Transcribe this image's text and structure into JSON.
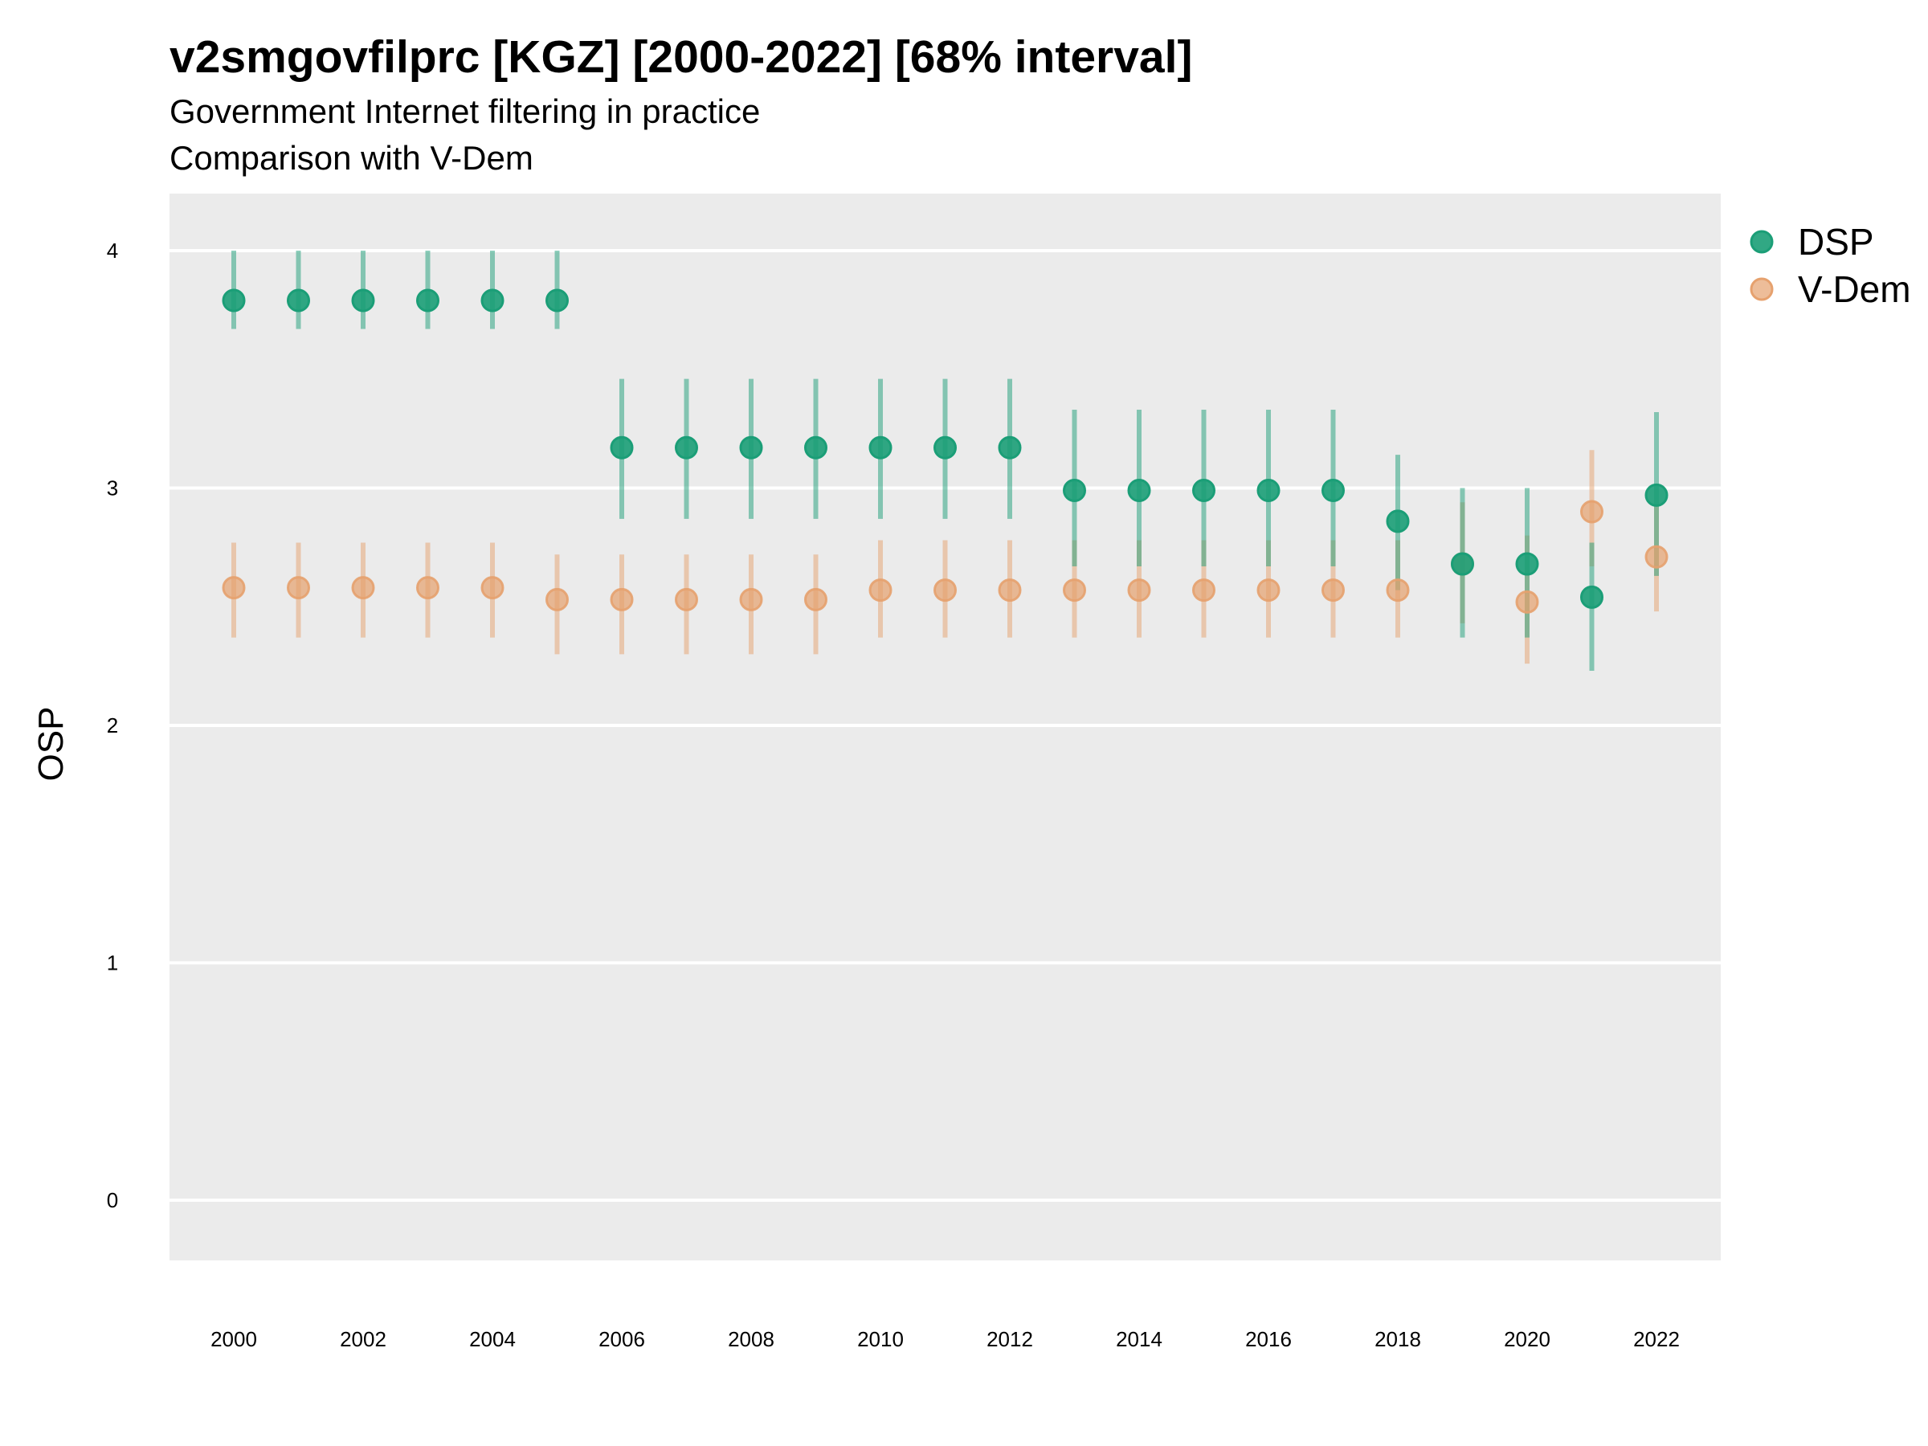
{
  "title": "v2smgovfilprc [KGZ] [2000-2022] [68% interval]",
  "subtitle": "Government Internet filtering in practice",
  "subtitle2": "Comparison with V-Dem",
  "chart_data": {
    "type": "scatter",
    "title": "v2smgovfilprc [KGZ] [2000-2022] [68% interval]",
    "ylabel": "OSP",
    "xlabel": "",
    "x": [
      2000,
      2001,
      2002,
      2003,
      2004,
      2005,
      2006,
      2007,
      2008,
      2009,
      2010,
      2011,
      2012,
      2013,
      2014,
      2015,
      2016,
      2017,
      2018,
      2019,
      2020,
      2021,
      2022
    ],
    "x_ticks": [
      "2000",
      "2002",
      "2004",
      "2006",
      "2008",
      "2010",
      "2012",
      "2014",
      "2016",
      "2018",
      "2020",
      "2022"
    ],
    "y_ticks": [
      "0",
      "1",
      "2",
      "3",
      "4"
    ],
    "ylim": [
      -0.25,
      4.25
    ],
    "xlim": [
      1999,
      2023
    ],
    "grid": true,
    "legend_position": "right",
    "series": [
      {
        "name": "DSP",
        "color": "#1b9e77",
        "values": [
          3.79,
          3.79,
          3.79,
          3.79,
          3.79,
          3.79,
          3.17,
          3.17,
          3.17,
          3.17,
          3.17,
          3.17,
          3.17,
          2.99,
          2.99,
          2.99,
          2.99,
          2.99,
          2.86,
          2.68,
          2.68,
          2.54,
          2.97
        ],
        "lower": [
          3.67,
          3.67,
          3.67,
          3.67,
          3.67,
          3.67,
          2.87,
          2.87,
          2.87,
          2.87,
          2.87,
          2.87,
          2.87,
          2.67,
          2.67,
          2.67,
          2.67,
          2.67,
          2.57,
          2.37,
          2.37,
          2.23,
          2.63
        ],
        "upper": [
          4.0,
          4.0,
          4.0,
          4.0,
          4.0,
          4.0,
          3.46,
          3.46,
          3.46,
          3.46,
          3.46,
          3.46,
          3.46,
          3.33,
          3.33,
          3.33,
          3.33,
          3.33,
          3.14,
          3.0,
          3.0,
          2.77,
          3.32
        ]
      },
      {
        "name": "V-Dem",
        "color": "#e6a16e",
        "values": [
          2.58,
          2.58,
          2.58,
          2.58,
          2.58,
          2.53,
          2.53,
          2.53,
          2.53,
          2.53,
          2.57,
          2.57,
          2.57,
          2.57,
          2.57,
          2.57,
          2.57,
          2.57,
          2.57,
          2.68,
          2.52,
          2.9,
          2.71
        ],
        "lower": [
          2.37,
          2.37,
          2.37,
          2.37,
          2.37,
          2.3,
          2.3,
          2.3,
          2.3,
          2.3,
          2.37,
          2.37,
          2.37,
          2.37,
          2.37,
          2.37,
          2.37,
          2.37,
          2.37,
          2.43,
          2.26,
          2.67,
          2.48
        ],
        "upper": [
          2.77,
          2.77,
          2.77,
          2.77,
          2.77,
          2.72,
          2.72,
          2.72,
          2.72,
          2.72,
          2.78,
          2.78,
          2.78,
          2.78,
          2.78,
          2.78,
          2.78,
          2.78,
          2.78,
          2.94,
          2.8,
          3.16,
          2.93
        ]
      }
    ]
  }
}
